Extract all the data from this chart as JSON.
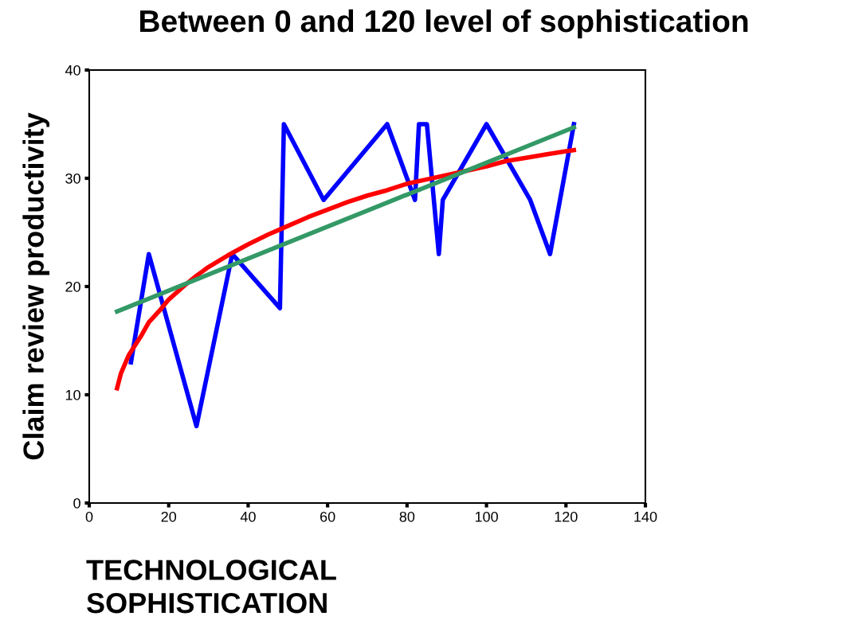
{
  "chart_data": {
    "type": "line",
    "title": "Between 0 and 120 level of sophistication",
    "xlabel": "TECHNOLOGICAL\nSOPHISTICATION",
    "ylabel": "Claim review productivity",
    "xlim": [
      0,
      140
    ],
    "xticks": [
      0,
      20,
      40,
      60,
      80,
      100,
      120,
      140
    ],
    "ylim": [
      0,
      40
    ],
    "yticks": [
      0,
      10,
      20,
      30,
      40
    ],
    "grid": false,
    "legend": false,
    "marker": "none",
    "line_style": "solid",
    "series": [
      {
        "color": "#0000ff",
        "x": [
          10.5,
          15,
          27,
          36,
          48,
          49,
          59,
          75,
          82,
          83,
          85,
          88,
          89,
          100,
          111,
          116,
          122
        ],
        "values": [
          13,
          23,
          7.1,
          23,
          18,
          35,
          28,
          35,
          28,
          35,
          35,
          23,
          28,
          35,
          28,
          23,
          35
        ]
      },
      {
        "color": "#ff0000",
        "x": [
          7,
          8,
          10,
          13,
          15,
          18,
          20,
          24,
          27,
          30,
          35,
          40,
          45,
          50,
          55,
          60,
          65,
          70,
          75,
          80,
          85,
          90,
          95,
          100,
          105,
          110,
          115,
          120,
          122
        ],
        "values": [
          10.6,
          12,
          13.7,
          15.4,
          16.7,
          17.9,
          18.8,
          20.1,
          21,
          21.8,
          22.9,
          23.9,
          24.8,
          25.6,
          26.4,
          27.1,
          27.8,
          28.4,
          28.9,
          29.5,
          29.9,
          30.3,
          30.7,
          31.1,
          31.6,
          31.9,
          32.2,
          32.5,
          32.6
        ]
      },
      {
        "color": "#339966",
        "x": [
          7,
          122
        ],
        "values": [
          17.7,
          34.7
        ]
      }
    ]
  }
}
